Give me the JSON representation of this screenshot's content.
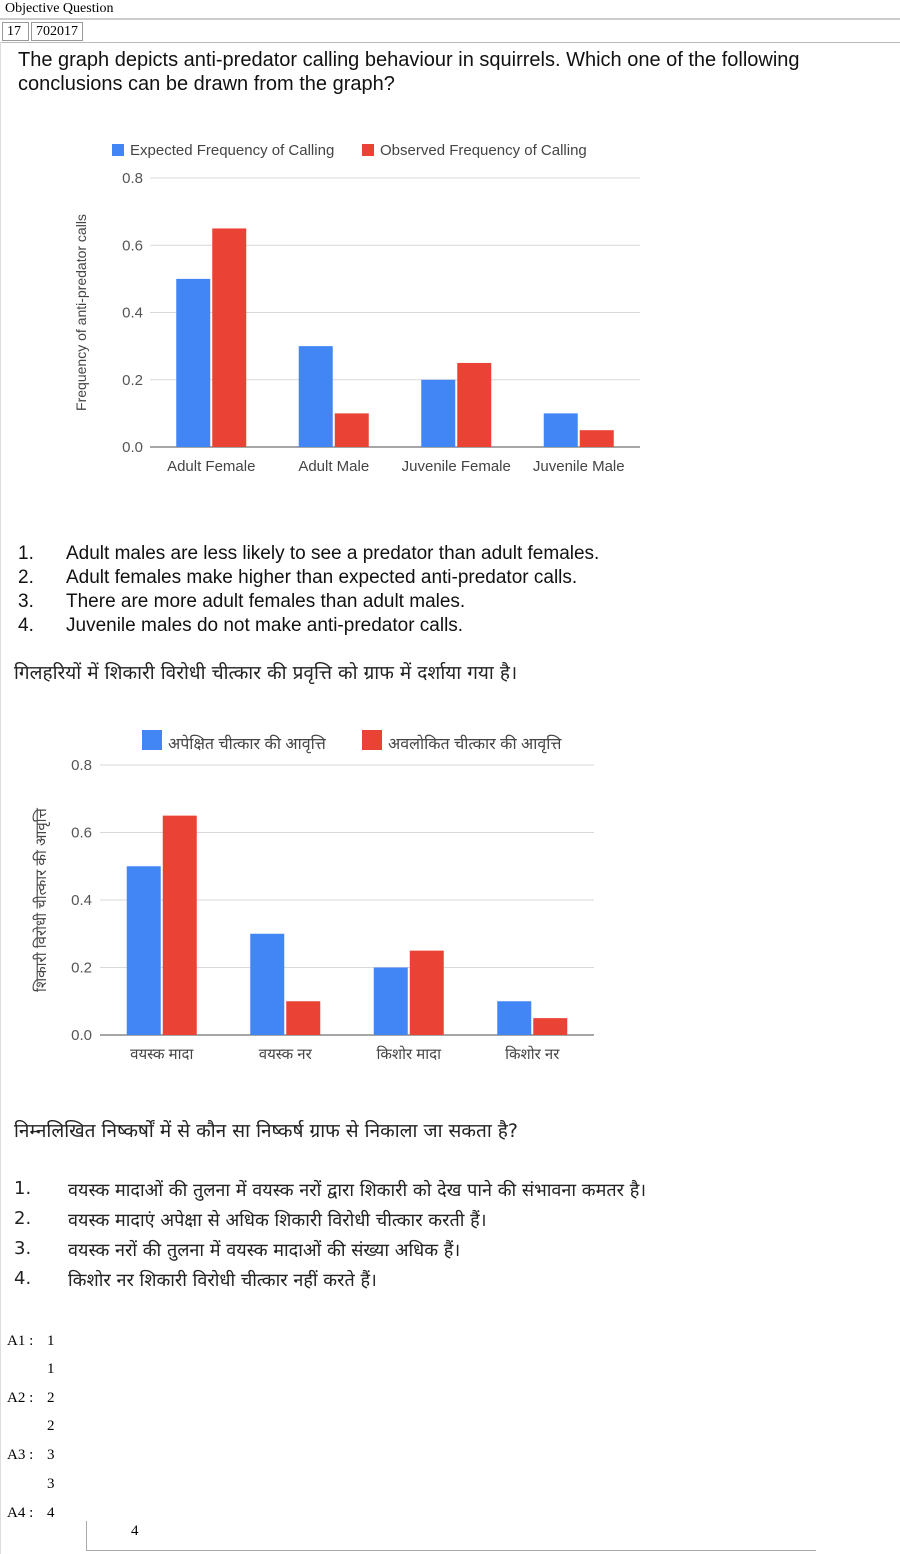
{
  "header": {
    "title": "Objective Question"
  },
  "question_meta": {
    "number": "17",
    "id": "702017"
  },
  "question_en": {
    "text": "The graph depicts anti-predator calling behaviour in squirrels. Which one of the following conclusions can be drawn from the graph?",
    "options": [
      {
        "num": "1.",
        "text": "Adult males are less likely to see a predator than adult females."
      },
      {
        "num": "2.",
        "text": "Adult females make higher than expected anti-predator calls."
      },
      {
        "num": "3.",
        "text": "There are more adult females than adult males."
      },
      {
        "num": "4.",
        "text": "Juvenile males do not make anti-predator calls."
      }
    ]
  },
  "question_hi": {
    "intro": "गिलहरियों में शिकारी विरोधी चीत्कार की प्रवृत्ति को ग्राफ में दर्शाया गया है।",
    "prompt": "निम्नलिखित निष्कर्षों में से कौन सा निष्कर्ष ग्राफ से निकाला जा सकता है?",
    "options": [
      {
        "num": "1.",
        "text": "वयस्क मादाओं की तुलना में वयस्क नरों द्वारा शिकारी को देख पाने की संभावना कमतर है।"
      },
      {
        "num": "2.",
        "text": "वयस्क मादाएं अपेक्षा से अधिक शिकारी विरोधी चीत्कार करती हैं।"
      },
      {
        "num": "3.",
        "text": "वयस्क नरों की तुलना में वयस्क मादाओं की संख्या अधिक हैं।"
      },
      {
        "num": "4.",
        "text": "किशोर नर शिकारी विरोधी चीत्कार नहीं करते हैं।"
      }
    ]
  },
  "colors": {
    "expected": "#4285f4",
    "observed": "#ea4335",
    "grid": "#d9d9d9",
    "axis": "#888888"
  },
  "chart_data": [
    {
      "type": "bar",
      "categories": [
        "Adult Female",
        "Adult Male",
        "Juvenile Female",
        "Juvenile Male"
      ],
      "series": [
        {
          "name": "Expected Frequency of Calling",
          "values": [
            0.5,
            0.3,
            0.2,
            0.1
          ]
        },
        {
          "name": "Observed Frequency of Calling",
          "values": [
            0.65,
            0.1,
            0.25,
            0.05
          ]
        }
      ],
      "ylabel": "Frequency of anti-predator calls",
      "xlabel": "",
      "ylim": [
        0,
        0.8
      ],
      "yticks": [
        "0.0",
        "0.2",
        "0.4",
        "0.6",
        "0.8"
      ],
      "legend": "top",
      "grid": true
    },
    {
      "type": "bar",
      "categories": [
        "वयस्क मादा",
        "वयस्क नर",
        "किशोर मादा",
        "किशोर नर"
      ],
      "series": [
        {
          "name": "अपेक्षित चीत्कार की आवृत्ति",
          "values": [
            0.5,
            0.3,
            0.2,
            0.1
          ]
        },
        {
          "name": "अवलोकित चीत्कार की आवृत्ति",
          "values": [
            0.65,
            0.1,
            0.25,
            0.05
          ]
        }
      ],
      "ylabel": "शिकारी विरोधी चीत्कार की आवृत्ति",
      "xlabel": "",
      "ylim": [
        0,
        0.8
      ],
      "yticks": [
        "0.0",
        "0.2",
        "0.4",
        "0.6",
        "0.8"
      ],
      "legend": "top",
      "grid": true
    }
  ],
  "answers": [
    {
      "label": "A1 :",
      "value": "1",
      "repeat": "1"
    },
    {
      "label": "A2 :",
      "value": "2",
      "repeat": "2"
    },
    {
      "label": "A3 :",
      "value": "3",
      "repeat": "3"
    },
    {
      "label": "A4 :",
      "value": "4",
      "repeat": "4"
    }
  ]
}
